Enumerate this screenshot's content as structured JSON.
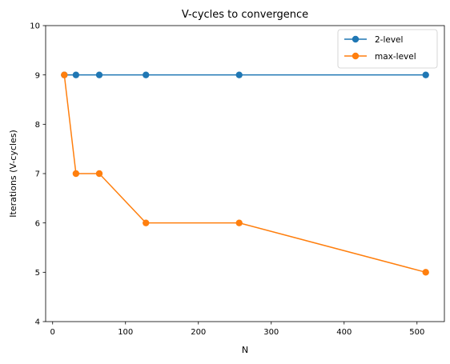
{
  "chart_data": {
    "type": "line",
    "title": "V-cycles to convergence",
    "xlabel": "N",
    "ylabel": "Iterations (V-cycles)",
    "xlim": [
      -9.6,
      537.6
    ],
    "ylim": [
      4,
      10
    ],
    "xticks": [
      0,
      100,
      200,
      300,
      400,
      500
    ],
    "yticks": [
      4,
      5,
      6,
      7,
      8,
      9,
      10
    ],
    "grid": false,
    "legend_position": "top-right",
    "x": [
      16,
      32,
      64,
      128,
      256,
      512
    ],
    "series": [
      {
        "name": "2-level",
        "color": "#1f77b4",
        "values": [
          9,
          9,
          9,
          9,
          9,
          9
        ]
      },
      {
        "name": "max-level",
        "color": "#ff7f0e",
        "values": [
          9,
          7,
          7,
          6,
          6,
          5
        ]
      }
    ]
  }
}
